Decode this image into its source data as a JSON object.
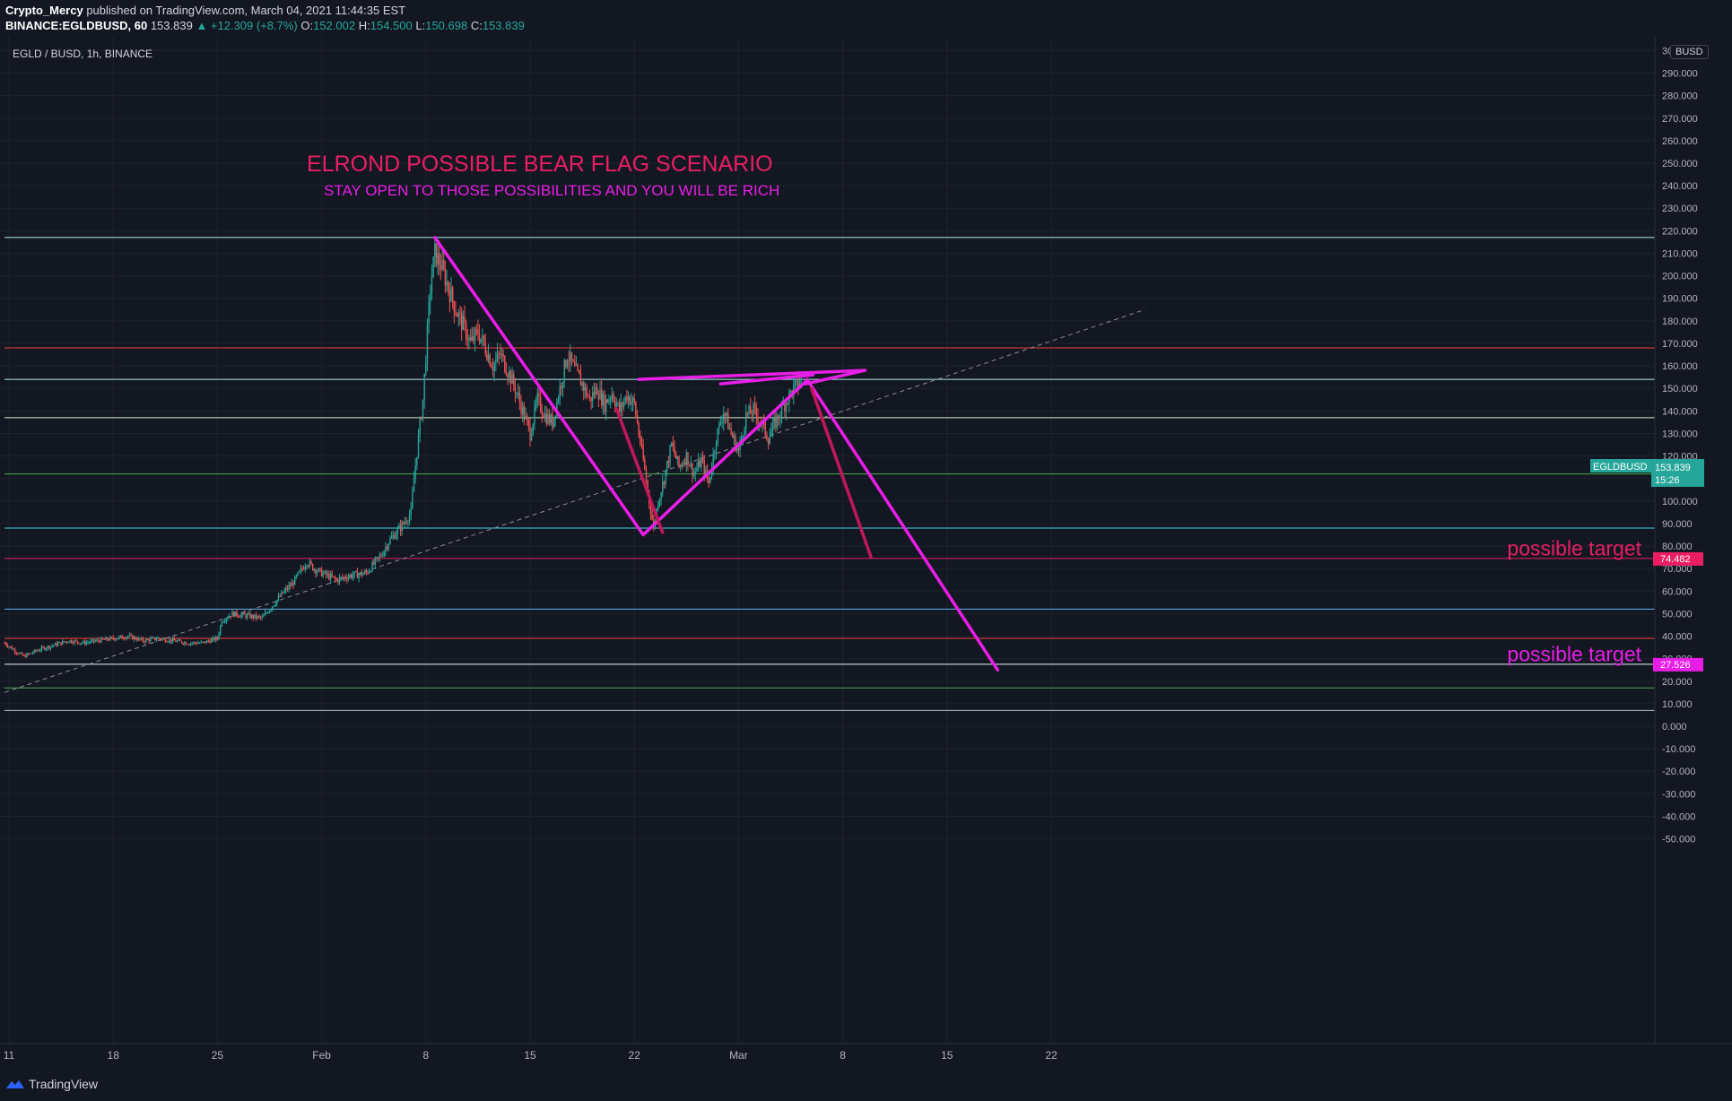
{
  "header": {
    "author": "Crypto_Mercy",
    "published_text": "published on TradingView.com, March 04, 2021 11:44:35 EST",
    "symbol_line": "BINANCE:EGLDBUSD, 60",
    "last_price": "153.839",
    "change": "▲ +12.309 (+8.7%)",
    "open_label": "O:",
    "open": "152.002",
    "high_label": "H:",
    "high": "154.500",
    "low_label": "L:",
    "low": "150.698",
    "close_label": "C:",
    "close": "153.839"
  },
  "legend": {
    "title": "EGLD / BUSD, 1h, BINANCE"
  },
  "currency_button": "BUSD",
  "footer": {
    "brand": "TradingView"
  },
  "chart_data": {
    "type": "candlestick",
    "pair": "EGLD / BUSD",
    "interval": "1h",
    "exchange": "BINANCE",
    "y_axis": {
      "ylim": [
        -55,
        305
      ],
      "ticks": [
        "300.000",
        "290.000",
        "280.000",
        "270.000",
        "260.000",
        "250.000",
        "240.000",
        "230.000",
        "220.000",
        "210.000",
        "200.000",
        "190.000",
        "180.000",
        "170.000",
        "160.000",
        "150.000",
        "140.000",
        "130.000",
        "120.000",
        "110.000",
        "100.000",
        "90.000",
        "80.000",
        "70.000",
        "60.000",
        "50.000",
        "40.000",
        "30.000",
        "20.000",
        "10.000",
        "0.000",
        "-10.000",
        "-20.000",
        "-30.000",
        "-40.000",
        "-50.000"
      ]
    },
    "x_axis": {
      "ticks": [
        {
          "label": "11",
          "day": 0
        },
        {
          "label": "18",
          "day": 7
        },
        {
          "label": "25",
          "day": 14
        },
        {
          "label": "Feb",
          "day": 21
        },
        {
          "label": "8",
          "day": 28
        },
        {
          "label": "15",
          "day": 35
        },
        {
          "label": "22",
          "day": 42
        },
        {
          "label": "Mar",
          "day": 49
        },
        {
          "label": "8",
          "day": 56
        },
        {
          "label": "15",
          "day": 63
        },
        {
          "label": "22",
          "day": 70
        }
      ]
    },
    "price_path": [
      [
        -0.3,
        37
      ],
      [
        0.5,
        33
      ],
      [
        1,
        31
      ],
      [
        2,
        34
      ],
      [
        3,
        36
      ],
      [
        4,
        38
      ],
      [
        5,
        37
      ],
      [
        6,
        38
      ],
      [
        7,
        39
      ],
      [
        8,
        40
      ],
      [
        9,
        38
      ],
      [
        10,
        39
      ],
      [
        11,
        38
      ],
      [
        12,
        37
      ],
      [
        13,
        37
      ],
      [
        14,
        39
      ],
      [
        14.3,
        47
      ],
      [
        15,
        50
      ],
      [
        16,
        49
      ],
      [
        17,
        48
      ],
      [
        17.5,
        52
      ],
      [
        18,
        56
      ],
      [
        18.5,
        60
      ],
      [
        19,
        63
      ],
      [
        19.5,
        68
      ],
      [
        20,
        73
      ],
      [
        20.5,
        70
      ],
      [
        21,
        68
      ],
      [
        22,
        65
      ],
      [
        23,
        67
      ],
      [
        24,
        68
      ],
      [
        24.5,
        72
      ],
      [
        25,
        76
      ],
      [
        25.5,
        82
      ],
      [
        26,
        86
      ],
      [
        26.5,
        90
      ],
      [
        27,
        95
      ],
      [
        27.2,
        110
      ],
      [
        27.5,
        128
      ],
      [
        27.8,
        145
      ],
      [
        28,
        165
      ],
      [
        28.3,
        195
      ],
      [
        28.6,
        210
      ],
      [
        29,
        205
      ],
      [
        29.5,
        195
      ],
      [
        30,
        185
      ],
      [
        30.5,
        178
      ],
      [
        31,
        170
      ],
      [
        31.5,
        175
      ],
      [
        32,
        168
      ],
      [
        32.5,
        160
      ],
      [
        33,
        165
      ],
      [
        33.5,
        158
      ],
      [
        34,
        150
      ],
      [
        34.5,
        140
      ],
      [
        35,
        130
      ],
      [
        35.5,
        145
      ],
      [
        36,
        138
      ],
      [
        36.5,
        135
      ],
      [
        37,
        150
      ],
      [
        37.5,
        165
      ],
      [
        38,
        158
      ],
      [
        38.5,
        152
      ],
      [
        39,
        145
      ],
      [
        39.5,
        150
      ],
      [
        40,
        143
      ],
      [
        40.5,
        148
      ],
      [
        41,
        140
      ],
      [
        41.5,
        147
      ],
      [
        42,
        143
      ],
      [
        42.3,
        130
      ],
      [
        42.6,
        118
      ],
      [
        43,
        100
      ],
      [
        43.3,
        88
      ],
      [
        43.6,
        100
      ],
      [
        44,
        110
      ],
      [
        44.5,
        125
      ],
      [
        45,
        115
      ],
      [
        45.5,
        120
      ],
      [
        46,
        112
      ],
      [
        46.5,
        118
      ],
      [
        47,
        108
      ],
      [
        47.5,
        128
      ],
      [
        48,
        140
      ],
      [
        48.5,
        130
      ],
      [
        49,
        122
      ],
      [
        49.5,
        138
      ],
      [
        50,
        140
      ],
      [
        50.5,
        135
      ],
      [
        51,
        128
      ],
      [
        51.5,
        135
      ],
      [
        52,
        142
      ],
      [
        52.5,
        148
      ],
      [
        53,
        152
      ],
      [
        53.3,
        154
      ]
    ],
    "horizontal_levels": [
      {
        "value": 217,
        "color": "#b2ebf2"
      },
      {
        "value": 168,
        "color": "#f44336"
      },
      {
        "value": 154,
        "color": "#b2ebf2"
      },
      {
        "value": 137,
        "color": "#dcedc8"
      },
      {
        "value": 112,
        "color": "#4caf50"
      },
      {
        "value": 88,
        "color": "#4dd0e1"
      },
      {
        "value": 74.482,
        "color": "#e91e63"
      },
      {
        "value": 52,
        "color": "#64b5f6"
      },
      {
        "value": 39,
        "color": "#f44336"
      },
      {
        "value": 27.526,
        "color": "#e1f5fe"
      },
      {
        "value": 17,
        "color": "#4caf50"
      },
      {
        "value": 7,
        "color": "#b0bec5"
      }
    ],
    "trendline_dashed": {
      "from": {
        "day": -0.3,
        "value": 15
      },
      "to": {
        "day": 76.3,
        "value": 185
      }
    },
    "drawings": [
      {
        "color": "#e91ee6",
        "points": [
          [
            28.6,
            217
          ],
          [
            42.6,
            85
          ],
          [
            53.5,
            153
          ]
        ]
      },
      {
        "color": "#e91ee6",
        "points": [
          [
            42.3,
            154
          ],
          [
            57.5,
            158
          ],
          [
            53.5,
            152
          ]
        ]
      },
      {
        "color": "#e91ee6",
        "points": [
          [
            47.8,
            152
          ],
          [
            54,
            156
          ]
        ]
      },
      {
        "color": "#e91ee6",
        "points": [
          [
            53.6,
            154
          ],
          [
            66.4,
            25
          ]
        ]
      },
      {
        "color": "#c2185b",
        "points": [
          [
            40.8,
            141
          ],
          [
            43.9,
            86
          ]
        ]
      },
      {
        "color": "#c2185b",
        "points": [
          [
            53.9,
            150
          ],
          [
            57.9,
            75
          ]
        ]
      }
    ],
    "price_labels": [
      {
        "text": "EGLDBUSD",
        "value": "153.839",
        "sub": "15:26",
        "color": "#26a69a"
      },
      {
        "text": "74.482",
        "color": "#e91e63"
      },
      {
        "text": "27.526",
        "color": "#e91ee6"
      }
    ],
    "annotations": [
      {
        "text": "ELROND POSSIBLE BEAR FLAG SCENARIO",
        "color": "#e91e63"
      },
      {
        "text": "STAY OPEN TO THOSE POSSIBILITIES AND YOU WILL BE RICH",
        "color": "#e91ee6"
      },
      {
        "text": "possible target",
        "value": 79,
        "color": "#e91e63"
      },
      {
        "text": "possible target",
        "value": 32,
        "color": "#e91ee6"
      }
    ]
  }
}
